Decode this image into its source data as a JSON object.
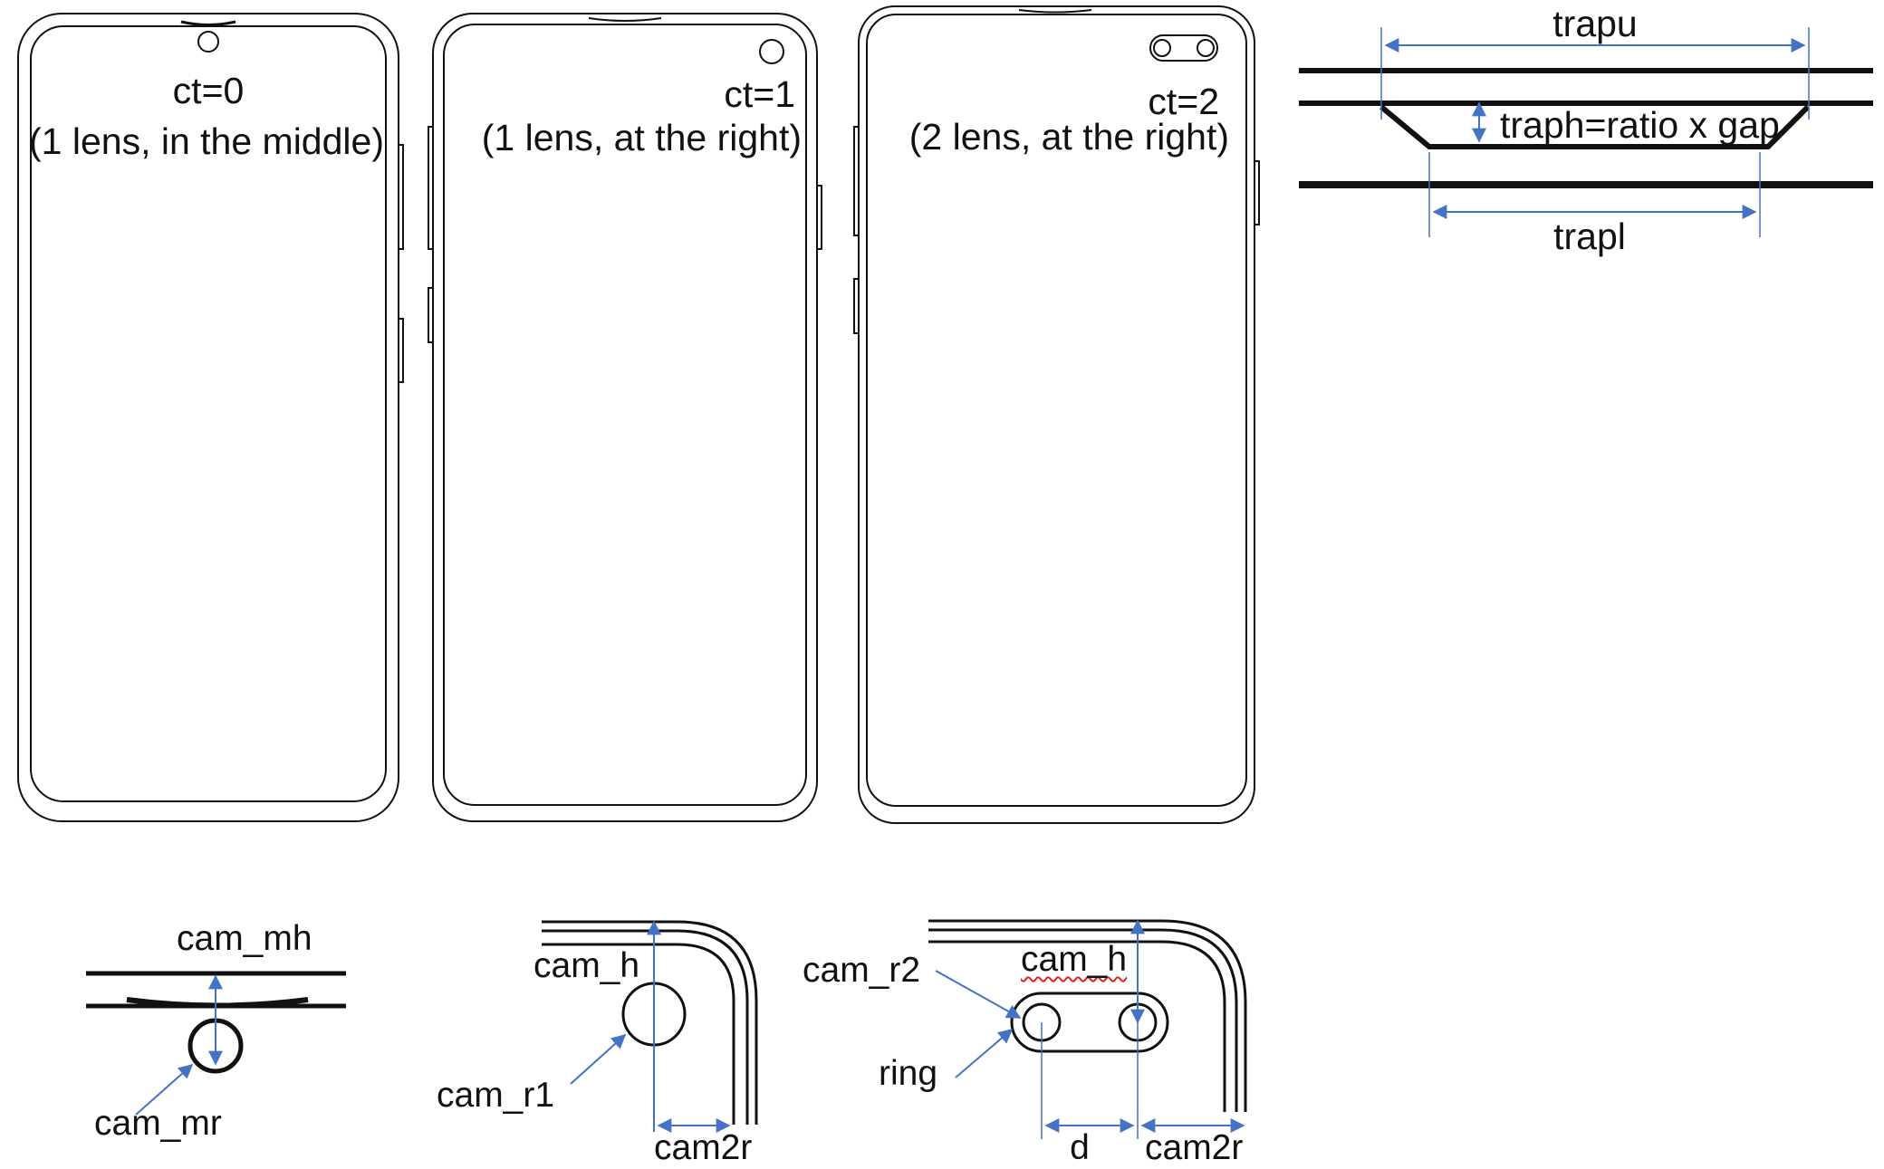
{
  "phones": [
    {
      "ct_label": "ct=0",
      "desc": "(1 lens, in the middle)"
    },
    {
      "ct_label": "ct=1",
      "desc": "(1 lens, at the right)"
    },
    {
      "ct_label": "ct=2",
      "desc": "(2 lens, at the right)"
    }
  ],
  "notch_detail": {
    "top": "trapu",
    "height": "traph=ratio x gap",
    "bottom": "trapl"
  },
  "middle_lens_detail": {
    "height": "cam_mh",
    "radius": "cam_mr"
  },
  "single_right_detail": {
    "height": "cam_h",
    "radius": "cam_r1",
    "offset": "cam2r"
  },
  "dual_right_detail": {
    "radius": "cam_r2",
    "height": "cam_h",
    "ring": "ring",
    "distance": "d",
    "offset": "cam2r"
  },
  "colors": {
    "outline": "#111111",
    "dimension": "#4472c4",
    "spellcheck": "#dd2222"
  }
}
